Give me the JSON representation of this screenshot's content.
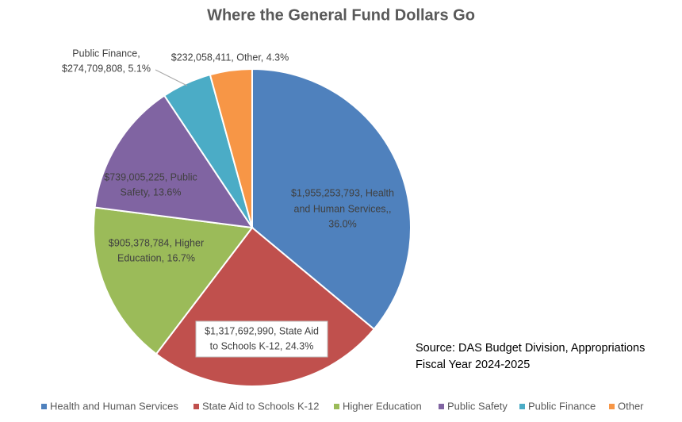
{
  "chart_data": {
    "type": "pie",
    "title": "Where the General Fund Dollars Go",
    "categories": [
      "Health and Human Services",
      "State Aid to Schools K-12",
      "Higher Education",
      "Public Safety",
      "Public Finance",
      "Other"
    ],
    "values": [
      1955253793,
      1317692990,
      905378784,
      739005225,
      274709808,
      232058411
    ],
    "value_labels": [
      [
        "$1,955,253,793, Health",
        "and Human Services,,",
        "36.0%"
      ],
      [
        "$1,317,692,990, State Aid",
        "to Schools K-12,  24.3%"
      ],
      [
        "$905,378,784, Higher",
        "Education,  16.7%"
      ],
      [
        "$739,005,225, Public",
        "Safety,  13.6%"
      ],
      [
        "Public Finance,",
        "$274,709,808, 5.1%"
      ],
      [
        "$232,058,411, Other, 4.3%"
      ]
    ],
    "colors": [
      "#4f81bd",
      "#c0504d",
      "#9bbb59",
      "#8064a2",
      "#4bacc6",
      "#f79646"
    ],
    "annotation": [
      "Source: DAS Budget Division, Appropriations",
      "Fiscal Year 2024-2025"
    ],
    "legend": "bottom"
  }
}
